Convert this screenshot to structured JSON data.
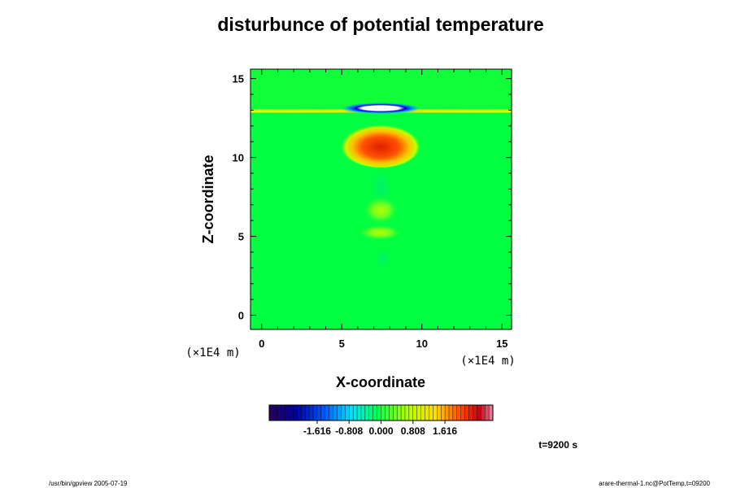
{
  "chart_data": {
    "type": "heatmap",
    "title": "disturbunce of potential temperature",
    "xlabel": "X-coordinate",
    "ylabel": "Z-coordinate",
    "x_unit": "(×1E4 m)",
    "y_unit": "(×1E4 m)",
    "xlim": [
      -0.7,
      15.6
    ],
    "ylim": [
      -0.9,
      15.6
    ],
    "x_ticks": [
      "0",
      "5",
      "10",
      "15"
    ],
    "y_ticks": [
      "0",
      "5",
      "10",
      "15"
    ],
    "colorbar": {
      "range": [
        -2.828,
        2.828
      ],
      "ticks": [
        "-1.616",
        "-0.808",
        "0.000",
        "0.808",
        "1.616"
      ],
      "tick_values": [
        -1.616,
        -0.808,
        0.0,
        0.808,
        1.616
      ]
    },
    "features": [
      {
        "x": 7.5,
        "z": 13.05,
        "value": -2.8
      },
      {
        "x": 7.5,
        "z": 11.0,
        "value": 2.2
      },
      {
        "x": 7.5,
        "z": 7.0,
        "value": 0.55
      },
      {
        "x": 7.5,
        "z": 5.5,
        "value": 0.45
      }
    ],
    "grid": false,
    "legend": "colorbar-bottom"
  },
  "time_label": "t=9200 s",
  "footer_left": "/usr/bin/gpview 2005-07-19",
  "footer_right": "arare-thermal-1.nc@PotTemp,t=09200"
}
